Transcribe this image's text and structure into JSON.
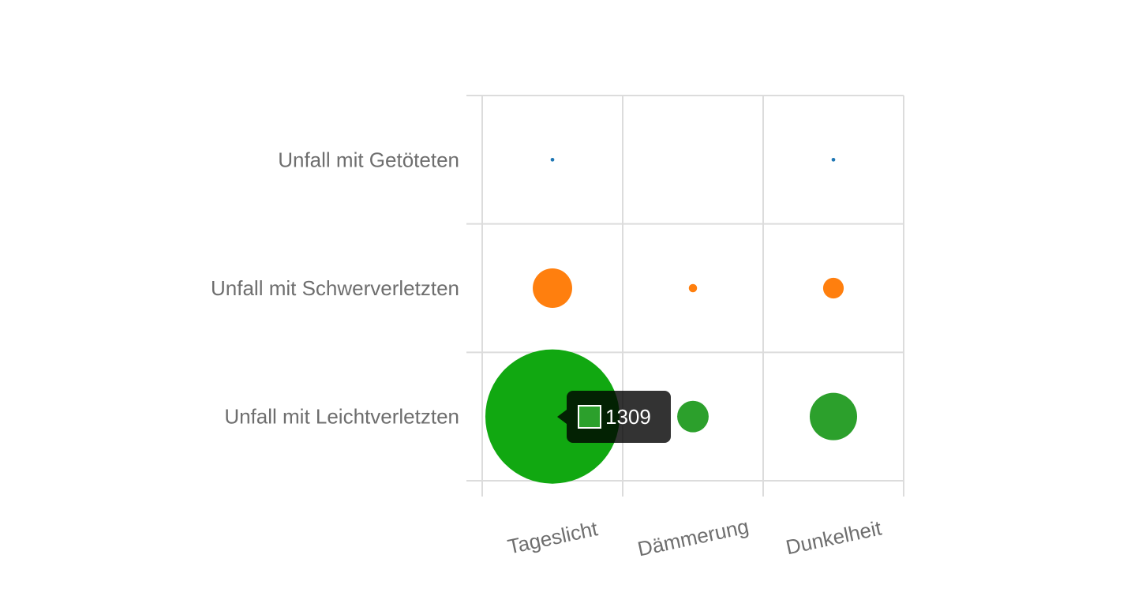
{
  "chart_data": {
    "type": "scatter",
    "subtype": "bubble",
    "x_categories": [
      "Tageslicht",
      "Dämmerung",
      "Dunkelheit"
    ],
    "y_categories": [
      "Unfall mit Leichtverletzten",
      "Unfall mit Schwerverletzten",
      "Unfall mit Getöteten"
    ],
    "series": [
      {
        "category": "Unfall mit Getöteten",
        "color": "#1f77b4",
        "values": [
          1,
          null,
          1
        ]
      },
      {
        "category": "Unfall mit Schwerverletzten",
        "color": "#ff7f0e",
        "values": [
          113,
          5,
          31
        ]
      },
      {
        "category": "Unfall mit Leichtverletzten",
        "color": "#2ca02c",
        "values": [
          1309,
          72,
          163
        ]
      }
    ],
    "bubble_size_scale": "sqrt",
    "grid": true,
    "highlighted": {
      "x": "Tageslicht",
      "y": "Unfall mit Leichtverletzten",
      "color": "#11a811"
    },
    "tooltip": {
      "value": "1309",
      "color": "#2ca02c"
    }
  }
}
